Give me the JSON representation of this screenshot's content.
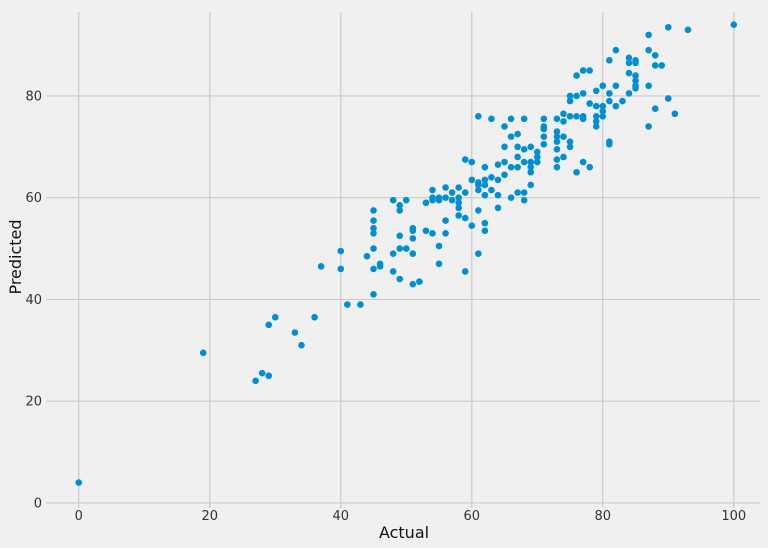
{
  "chart_data": {
    "type": "scatter",
    "title": "",
    "xlabel": "Actual",
    "ylabel": "Predicted",
    "xlim": [
      -5,
      104
    ],
    "ylim": [
      -1,
      96.5
    ],
    "xticks": [
      0,
      20,
      40,
      60,
      80,
      100
    ],
    "yticks": [
      0,
      20,
      40,
      60,
      80
    ],
    "grid": true,
    "marker_color": "#008fd5",
    "background": "#f0f0f0",
    "points": [
      [
        0,
        4
      ],
      [
        19,
        29.5
      ],
      [
        27,
        24
      ],
      [
        28,
        25.5
      ],
      [
        29,
        25
      ],
      [
        29,
        35
      ],
      [
        30,
        36.5
      ],
      [
        33,
        33.5
      ],
      [
        34,
        31
      ],
      [
        36,
        36.5
      ],
      [
        37,
        46.5
      ],
      [
        40,
        46
      ],
      [
        40,
        49.5
      ],
      [
        41,
        39
      ],
      [
        43,
        39
      ],
      [
        44,
        48.5
      ],
      [
        45,
        41
      ],
      [
        45,
        46
      ],
      [
        45,
        50
      ],
      [
        45,
        53
      ],
      [
        45,
        54
      ],
      [
        45,
        55.5
      ],
      [
        45,
        57.5
      ],
      [
        46,
        47
      ],
      [
        46,
        46.5
      ],
      [
        48,
        45.5
      ],
      [
        48,
        49
      ],
      [
        48,
        59.5
      ],
      [
        49,
        44
      ],
      [
        49,
        50
      ],
      [
        49,
        52.5
      ],
      [
        49,
        57.5
      ],
      [
        49,
        58.5
      ],
      [
        50,
        50
      ],
      [
        50,
        59.5
      ],
      [
        51,
        43
      ],
      [
        51,
        49
      ],
      [
        51,
        52
      ],
      [
        51,
        53.5
      ],
      [
        51,
        54
      ],
      [
        52,
        43.5
      ],
      [
        53,
        59
      ],
      [
        53,
        53.5
      ],
      [
        54,
        53
      ],
      [
        54,
        59.5
      ],
      [
        54,
        60
      ],
      [
        54,
        61.5
      ],
      [
        55,
        47
      ],
      [
        55,
        50.5
      ],
      [
        55,
        59.5
      ],
      [
        55,
        60
      ],
      [
        56,
        53
      ],
      [
        56,
        55.5
      ],
      [
        56,
        60
      ],
      [
        56,
        62
      ],
      [
        57,
        59.5
      ],
      [
        57,
        61
      ],
      [
        58,
        56.5
      ],
      [
        58,
        58
      ],
      [
        58,
        59
      ],
      [
        58,
        60
      ],
      [
        58,
        62
      ],
      [
        59,
        45.5
      ],
      [
        59,
        56
      ],
      [
        59,
        61
      ],
      [
        59,
        67.5
      ],
      [
        60,
        54.5
      ],
      [
        60,
        63.5
      ],
      [
        60,
        67
      ],
      [
        61,
        49
      ],
      [
        61,
        57.5
      ],
      [
        61,
        61.5
      ],
      [
        61,
        62.5
      ],
      [
        61,
        63
      ],
      [
        61,
        76
      ],
      [
        62,
        53.5
      ],
      [
        62,
        55
      ],
      [
        62,
        60.5
      ],
      [
        62,
        62.5
      ],
      [
        62,
        63.5
      ],
      [
        62,
        66
      ],
      [
        63,
        61.5
      ],
      [
        63,
        64
      ],
      [
        63,
        75.5
      ],
      [
        64,
        58
      ],
      [
        64,
        60.5
      ],
      [
        64,
        63.5
      ],
      [
        64,
        66.5
      ],
      [
        65,
        64.5
      ],
      [
        65,
        67
      ],
      [
        65,
        70
      ],
      [
        65,
        74
      ],
      [
        66,
        60
      ],
      [
        66,
        66
      ],
      [
        66,
        72
      ],
      [
        66,
        75.5
      ],
      [
        67,
        61
      ],
      [
        67,
        66
      ],
      [
        67,
        68
      ],
      [
        67,
        70
      ],
      [
        67,
        72.5
      ],
      [
        68,
        59.5
      ],
      [
        68,
        61
      ],
      [
        68,
        67
      ],
      [
        68,
        69.5
      ],
      [
        68,
        75.5
      ],
      [
        69,
        62.5
      ],
      [
        69,
        65
      ],
      [
        69,
        66
      ],
      [
        69,
        67
      ],
      [
        69,
        70
      ],
      [
        70,
        67
      ],
      [
        70,
        68
      ],
      [
        70,
        69
      ],
      [
        71,
        70.5
      ],
      [
        71,
        72
      ],
      [
        71,
        73.5
      ],
      [
        71,
        74
      ],
      [
        71,
        75.5
      ],
      [
        73,
        66
      ],
      [
        73,
        67.5
      ],
      [
        73,
        69.5
      ],
      [
        73,
        71
      ],
      [
        73,
        72
      ],
      [
        73,
        73
      ],
      [
        73,
        75.5
      ],
      [
        74,
        68
      ],
      [
        74,
        72
      ],
      [
        74,
        75
      ],
      [
        74,
        76.5
      ],
      [
        75,
        70
      ],
      [
        75,
        71
      ],
      [
        75,
        76
      ],
      [
        75,
        79
      ],
      [
        75,
        80
      ],
      [
        76,
        65
      ],
      [
        76,
        76
      ],
      [
        76,
        80
      ],
      [
        76,
        84
      ],
      [
        77,
        67
      ],
      [
        77,
        75.5
      ],
      [
        77,
        76
      ],
      [
        77,
        80.5
      ],
      [
        77,
        85
      ],
      [
        78,
        66
      ],
      [
        78,
        78.5
      ],
      [
        78,
        85
      ],
      [
        79,
        74
      ],
      [
        79,
        75
      ],
      [
        79,
        76
      ],
      [
        79,
        78
      ],
      [
        79,
        81
      ],
      [
        80,
        76
      ],
      [
        80,
        77
      ],
      [
        80,
        78
      ],
      [
        80,
        82
      ],
      [
        81,
        70.5
      ],
      [
        81,
        71
      ],
      [
        81,
        79
      ],
      [
        81,
        80.5
      ],
      [
        81,
        87
      ],
      [
        82,
        78
      ],
      [
        82,
        82
      ],
      [
        82,
        89
      ],
      [
        83,
        79
      ],
      [
        84,
        80.5
      ],
      [
        84,
        84.5
      ],
      [
        84,
        86.5
      ],
      [
        84,
        87.5
      ],
      [
        85,
        81.5
      ],
      [
        85,
        82
      ],
      [
        85,
        83
      ],
      [
        85,
        84
      ],
      [
        85,
        86.5
      ],
      [
        85,
        87
      ],
      [
        87,
        74
      ],
      [
        87,
        82
      ],
      [
        87,
        89
      ],
      [
        87,
        92
      ],
      [
        88,
        77.5
      ],
      [
        88,
        86
      ],
      [
        88,
        88
      ],
      [
        89,
        86
      ],
      [
        90,
        79.5
      ],
      [
        90,
        93.5
      ],
      [
        91,
        76.5
      ],
      [
        93,
        93
      ],
      [
        100,
        94
      ]
    ]
  }
}
